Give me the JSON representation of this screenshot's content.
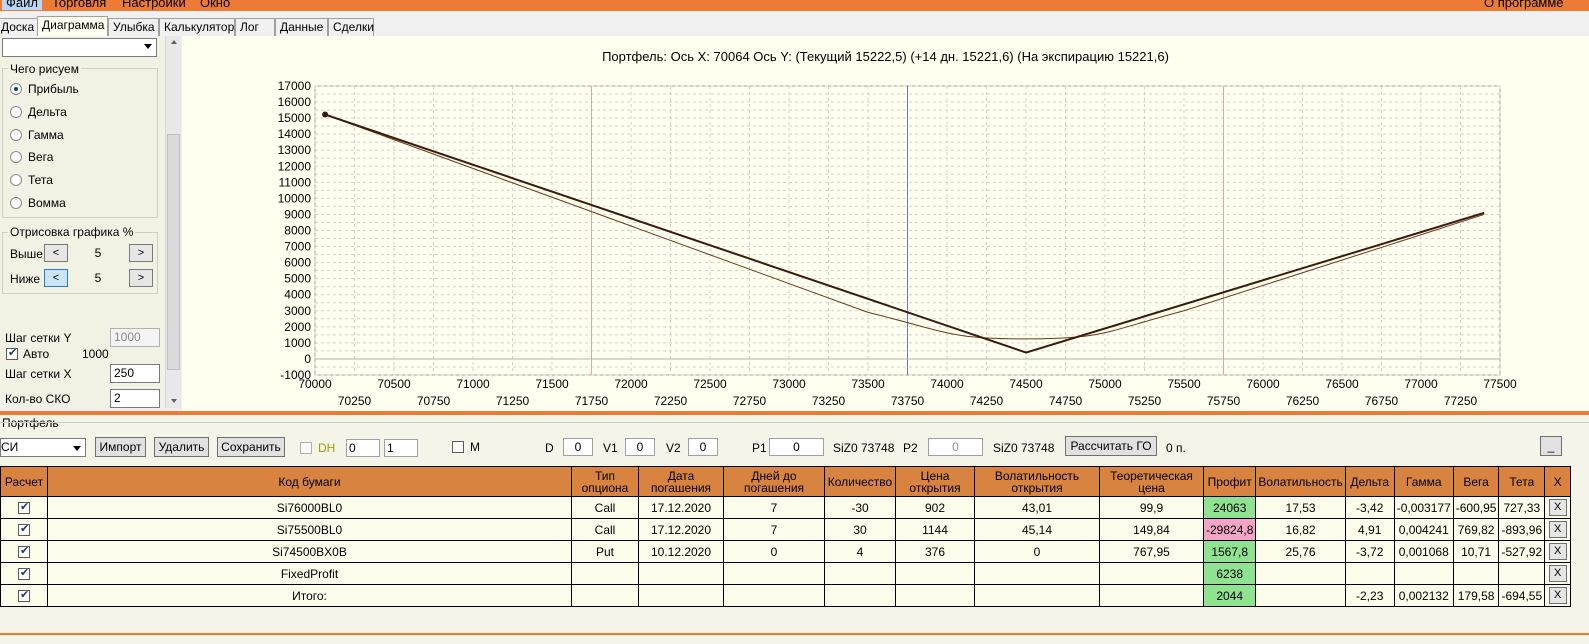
{
  "menu": {
    "file": "Файл",
    "trade": "Торговля",
    "settings": "Настройки",
    "window": "Окно",
    "about": "О программе"
  },
  "tabs": [
    "Доска",
    "Диаграмма",
    "Улыбка",
    "Калькулятор",
    "Лог",
    "Данные",
    "Сделки"
  ],
  "left": {
    "draw_group_title": "Чего рисуем",
    "radios": [
      "Прибыль",
      "Дельта",
      "Гамма",
      "Вега",
      "Тета",
      "Вомма"
    ],
    "plot_group_title": "Отрисовка графика %",
    "above_label": "Выше",
    "above_value": "5",
    "below_label": "Ниже",
    "below_value": "5",
    "prev_glyph": "<",
    "next_glyph": ">",
    "grid_y_label": "Шаг сетки Y",
    "grid_y_value": "1000",
    "auto_label": "Авто",
    "auto_value": "1000",
    "grid_x_label": "Шаг сетки X",
    "grid_x_value": "250",
    "sko_label": "Кол-во СКО",
    "sko_value": "2"
  },
  "chart_title": "Портфель: Ось X: 70064 Ось Y:  (Текущий 15222,5)  (+14 дн. 15221,6)  (На экспирацию 15221,6)",
  "chart_data": {
    "type": "line",
    "xlim": [
      70000,
      77500
    ],
    "ylim": [
      -1000,
      17000
    ],
    "y_ticks": [
      17000,
      16000,
      15000,
      14000,
      13000,
      12000,
      11000,
      10000,
      9000,
      8000,
      7000,
      6000,
      5000,
      4000,
      3000,
      2000,
      1000,
      0,
      -1000
    ],
    "x_ticks_top": [
      70000,
      70500,
      71000,
      71500,
      72000,
      72500,
      73000,
      73500,
      74000,
      74500,
      75000,
      75500,
      76000,
      76500,
      77000,
      77500
    ],
    "x_ticks_bottom": [
      70250,
      70750,
      71250,
      71750,
      72250,
      72750,
      73250,
      73750,
      74250,
      74750,
      75250,
      75750,
      76250,
      76750,
      77250
    ],
    "vertical_lines": [
      {
        "x": 71750,
        "color": "#f0a0a0"
      },
      {
        "x": 73750,
        "color": "#6a7aa8"
      },
      {
        "x": 75750,
        "color": "#f0a0a0"
      }
    ],
    "series": [
      {
        "color": "#3b1a0d",
        "x": [
          70064,
          74500,
          77400
        ],
        "y": [
          15222,
          400,
          9100
        ]
      },
      {
        "color": "#6a3a1a",
        "x": [
          70064,
          73500,
          74000,
          74500,
          75000,
          75500,
          77400
        ],
        "y": [
          15222,
          2900,
          1700,
          1250,
          1700,
          3000,
          9000
        ]
      }
    ],
    "marker": {
      "x": 70064,
      "y": 15222
    }
  },
  "portfolio": {
    "title": "Портфель",
    "combo_value": "СИ",
    "import": "Импорт",
    "delete": "Удалить",
    "save": "Сохранить",
    "dh": "DH",
    "spin1": "0",
    "spin2": "1",
    "m": "M",
    "d_label": "D",
    "d_value": "0",
    "v1_label": "V1",
    "v1_value": "0",
    "v2_label": "V2",
    "v2_value": "0",
    "p1_label": "P1",
    "p1_value": "0",
    "siz1": "SiZ0 73748",
    "p2_label": "P2",
    "p2_value": "0",
    "siz2": "SiZ0 73748",
    "calc_go": "Рассчитать ГО",
    "go_value": "0 п.",
    "min_btn": "_"
  },
  "table": {
    "headers": [
      "Расчет",
      "Код бумаги",
      "Тип опциона",
      "Дата погашения",
      "Дней до погашения",
      "Количество",
      "Цена открытия",
      "Волатильность открытия",
      "Теоретическая цена",
      "Профит",
      "Волатильность",
      "Дельта",
      "Гамма",
      "Вега",
      "Тета",
      "X"
    ],
    "rows": [
      {
        "code": "Si76000BL0",
        "type": "Call",
        "date": "17.12.2020",
        "days": "7",
        "qty": "-30",
        "price": "902",
        "vol_open": "43,01",
        "theo": "99,9",
        "profit": "24063",
        "profit_color": "green",
        "vol": "17,53",
        "delta": "-3,42",
        "gamma": "-0,003177",
        "vega": "-600,95",
        "theta": "727,33",
        "x": "X"
      },
      {
        "code": "Si75500BL0",
        "type": "Call",
        "date": "17.12.2020",
        "days": "7",
        "qty": "30",
        "price": "1144",
        "vol_open": "45,14",
        "theo": "149,84",
        "profit": "-29824,8",
        "profit_color": "red",
        "vol": "16,82",
        "delta": "4,91",
        "gamma": "0,004241",
        "vega": "769,82",
        "theta": "-893,96",
        "x": "X"
      },
      {
        "code": "Si74500BX0B",
        "type": "Put",
        "date": "10.12.2020",
        "days": "0",
        "qty": "4",
        "price": "376",
        "vol_open": "0",
        "theo": "767,95",
        "profit": "1567,8",
        "profit_color": "green",
        "vol": "25,76",
        "delta": "-3,72",
        "gamma": "0,001068",
        "vega": "10,71",
        "theta": "-527,92",
        "x": "X"
      },
      {
        "code": "FixedProfit",
        "type": "",
        "date": "",
        "days": "",
        "qty": "",
        "price": "",
        "vol_open": "",
        "theo": "",
        "profit": "6238",
        "profit_color": "green",
        "vol": "",
        "delta": "",
        "gamma": "",
        "vega": "",
        "theta": "",
        "x": "X"
      },
      {
        "code": "Итого:",
        "type": "",
        "date": "",
        "days": "",
        "qty": "",
        "price": "",
        "vol_open": "",
        "theo": "",
        "profit": "2044",
        "profit_color": "green",
        "vol": "",
        "delta": "-2,23",
        "gamma": "0,002132",
        "vega": "179,58",
        "theta": "-694,55",
        "x": "X"
      }
    ]
  }
}
